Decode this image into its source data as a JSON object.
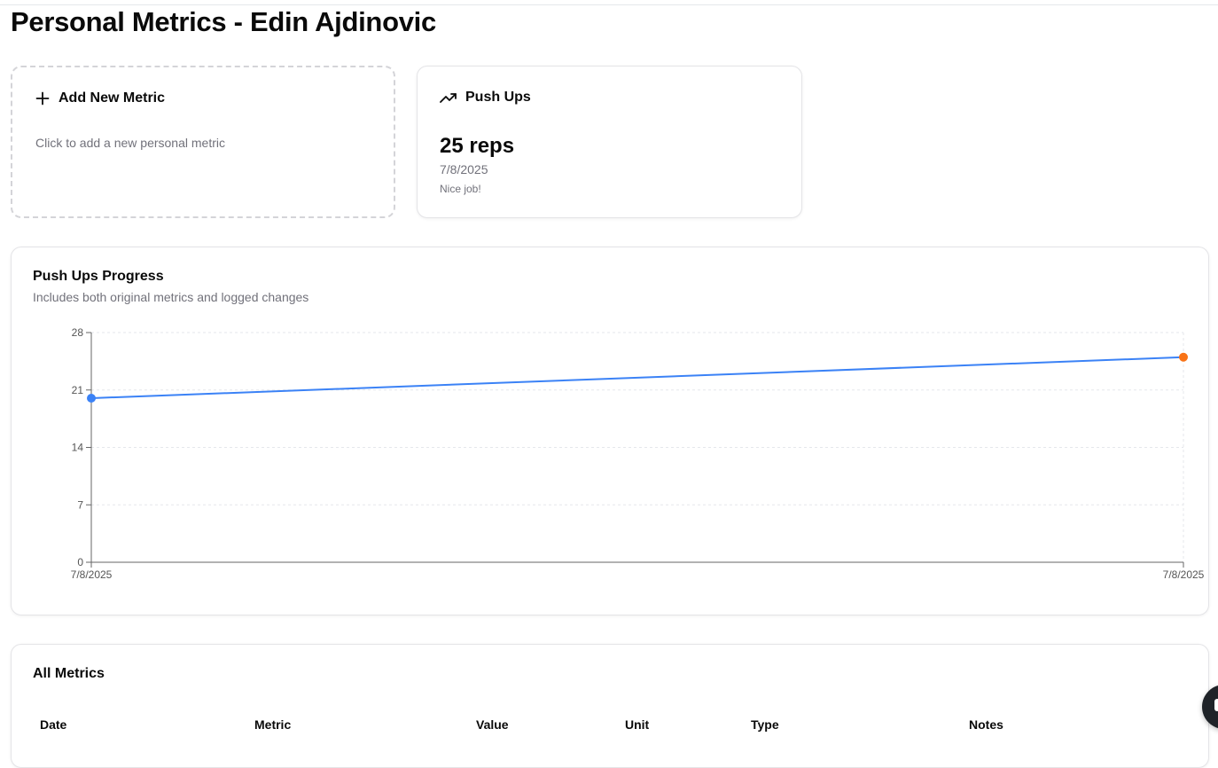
{
  "page": {
    "title": "Personal Metrics - Edin Ajdinovic"
  },
  "add_card": {
    "title": "Add New Metric",
    "subtitle": "Click to add a new personal metric",
    "icon": "plus-icon"
  },
  "metric_card": {
    "title": "Push Ups",
    "icon": "trending-up-icon",
    "value": "25 reps",
    "date": "7/8/2025",
    "note": "Nice job!"
  },
  "progress_chart": {
    "title": "Push Ups Progress",
    "subtitle": "Includes both original metrics and logged changes"
  },
  "chart_data": {
    "type": "line",
    "title": "Push Ups Progress",
    "subtitle": "Includes both original metrics and logged changes",
    "x": [
      "7/8/2025",
      "7/8/2025"
    ],
    "series": [
      {
        "values": [
          20,
          25
        ],
        "color": "#3b82f6",
        "point_colors": [
          "#3b82f6",
          "#f97316"
        ]
      }
    ],
    "y_ticks": [
      0,
      7,
      14,
      21,
      28
    ],
    "ylim": [
      0,
      28
    ],
    "grid": true,
    "xlabel": "",
    "ylabel": ""
  },
  "all_metrics": {
    "title": "All Metrics",
    "columns": [
      "Date",
      "Metric",
      "Value",
      "Unit",
      "Type",
      "Notes"
    ]
  },
  "colors": {
    "line": "#3b82f6",
    "latest_point": "#f97316",
    "muted_text": "#71717a"
  }
}
